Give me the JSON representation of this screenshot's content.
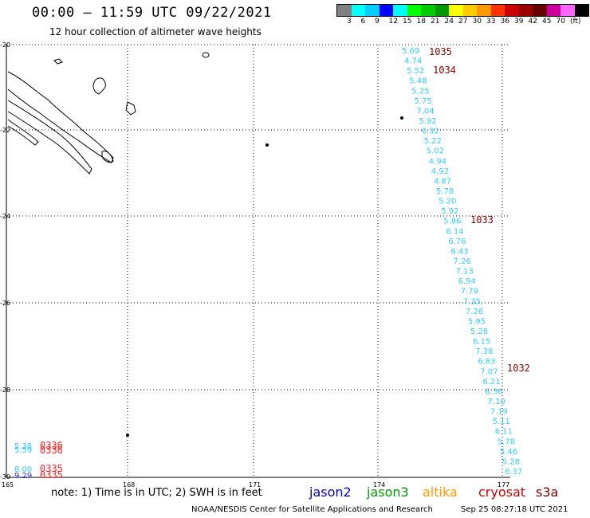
{
  "header": {
    "title": "00:00 – 11:59 UTC 09/22/2021",
    "subtitle": "12 hour collection of altimeter wave heights"
  },
  "legend": {
    "colors": [
      "#808080",
      "#00ffff",
      "#00ccff",
      "#0000ff",
      "#00ffff",
      "#00ff00",
      "#00cc00",
      "#009900",
      "#ffff00",
      "#ffcc00",
      "#ff9900",
      "#ff3300",
      "#cc0000",
      "#990000",
      "#660000",
      "#cc0099",
      "#ff66ff",
      "#000000"
    ],
    "labels": [
      "3",
      "6",
      "9",
      "12",
      "15",
      "18",
      "21",
      "24",
      "27",
      "30",
      "33",
      "36",
      "39",
      "42",
      "45",
      "70",
      "(ft)"
    ]
  },
  "axes": {
    "x_ticks": [
      "165",
      "168",
      "171",
      "174",
      "177"
    ],
    "y_ticks": [
      "-20",
      "-22",
      "-24",
      "-26",
      "-28",
      "-30"
    ]
  },
  "track": {
    "color": "#33ccff",
    "swh_ft": [
      "5.69",
      "4.74",
      "5.52",
      "5.48",
      "5.25",
      "5.75",
      "7.04",
      "5.92",
      "6.32",
      "5.22",
      "5.02",
      "4.94",
      "4.92",
      "4.87",
      "5.78",
      "5.20",
      "5.92",
      "5.86",
      "6.14",
      "6.76",
      "6.43",
      "7.26",
      "7.13",
      "6.94",
      "7.79",
      "7.35",
      "7.26",
      "5.95",
      "5.28",
      "6.15",
      "7.38",
      "6.83",
      "7.07",
      "6.21",
      "6.36",
      "7.10",
      "7.19",
      "5.11",
      "6.11",
      "5.78",
      "5.46",
      "5.28",
      "6.37"
    ],
    "times": [
      "1035",
      "1034",
      "1033",
      "1032"
    ]
  },
  "corner": {
    "swh_ft": [
      "5.38",
      "5.59",
      "8.00",
      "9.29"
    ],
    "times": [
      "0336",
      "0336",
      "0335",
      "0335"
    ]
  },
  "footer": {
    "note": "note: 1) Time is in UTC; 2) SWH is in feet",
    "satellites": [
      {
        "name": "jason2",
        "color": "#0000cc"
      },
      {
        "name": "jason3",
        "color": "#009900"
      },
      {
        "name": "altika",
        "color": "#ff9900"
      },
      {
        "name": "cryosat",
        "color": "#cc0000"
      },
      {
        "name": "s3a",
        "color": "#880000"
      }
    ],
    "credit": "NOAA/NESDIS Center for Satellite Applications and Research",
    "stamp": "Sep 25 08:27:18 UTC 2021"
  }
}
